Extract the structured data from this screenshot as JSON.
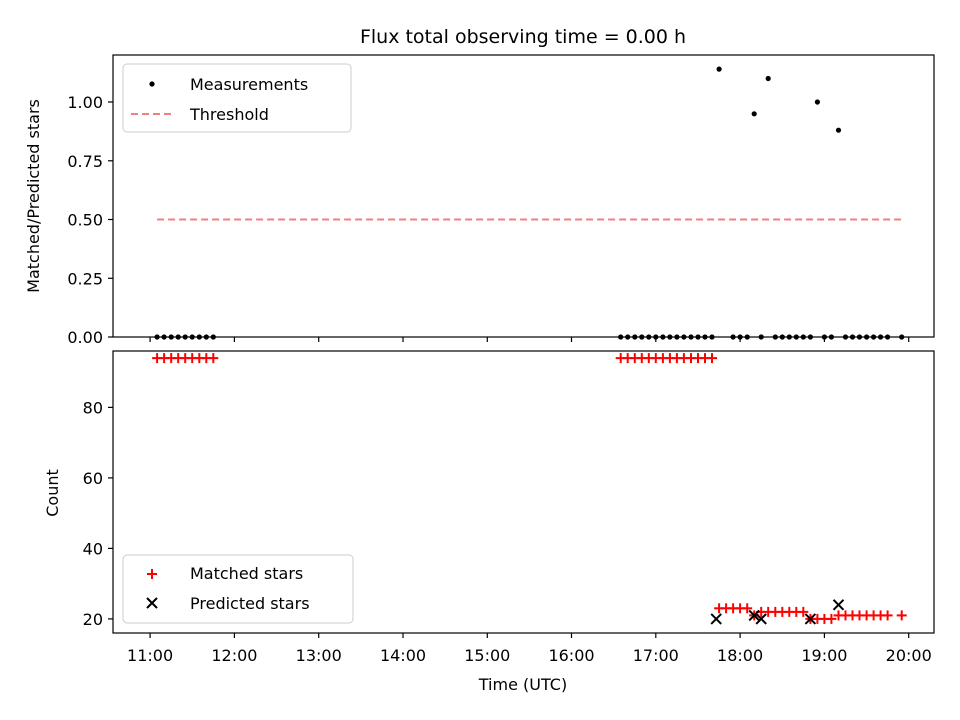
{
  "chart_data": [
    {
      "type": "scatter",
      "title": "Flux total observing time = 0.00 h",
      "xlabel": "",
      "ylabel": "Matched/Predicted stars",
      "ylim": [
        0,
        1.2
      ],
      "yticks": [
        "0.00",
        "0.25",
        "0.50",
        "0.75",
        "1.00"
      ],
      "yticks_values": [
        0,
        0.25,
        0.5,
        0.75,
        1.0
      ],
      "xlim": [
        10.56,
        20.3
      ],
      "x_time_range": [
        "10:34",
        "20:18"
      ],
      "legend": {
        "placement": "upper-left",
        "entries": [
          "Measurements",
          "Threshold"
        ]
      },
      "threshold": {
        "name": "Threshold",
        "value": 0.5,
        "x_range": [
          "11:05",
          "19:55"
        ],
        "color": "#f08080"
      },
      "series": [
        {
          "name": "Measurements",
          "color": "#000000",
          "x": [
            "11:05",
            "11:10",
            "11:15",
            "11:20",
            "11:25",
            "11:30",
            "11:35",
            "11:40",
            "11:45",
            "16:35",
            "16:40",
            "16:45",
            "16:50",
            "16:55",
            "17:00",
            "17:05",
            "17:10",
            "17:15",
            "17:20",
            "17:25",
            "17:30",
            "17:35",
            "17:40",
            "17:45",
            "17:55",
            "18:00",
            "18:05",
            "18:10",
            "18:15",
            "18:20",
            "18:25",
            "18:30",
            "18:35",
            "18:40",
            "18:45",
            "18:50",
            "18:55",
            "19:00",
            "19:05",
            "19:10",
            "19:15",
            "19:20",
            "19:25",
            "19:30",
            "19:35",
            "19:40",
            "19:45",
            "19:55"
          ],
          "y": [
            0,
            0,
            0,
            0,
            0,
            0,
            0,
            0,
            0,
            0,
            0,
            0,
            0,
            0,
            0,
            0,
            0,
            0,
            0,
            0,
            0,
            0,
            0,
            1.14,
            0,
            0,
            0,
            0.95,
            0,
            1.1,
            0,
            0,
            0,
            0,
            0,
            0,
            1.0,
            0,
            0,
            0.88,
            0,
            0,
            0,
            0,
            0,
            0,
            0,
            0
          ]
        }
      ]
    },
    {
      "type": "scatter",
      "title": "",
      "xlabel": "Time (UTC)",
      "ylabel": "Count",
      "ylim": [
        16,
        96
      ],
      "yticks": [
        "20",
        "40",
        "60",
        "80"
      ],
      "yticks_values": [
        20,
        40,
        60,
        80
      ],
      "xlim": [
        10.56,
        20.3
      ],
      "x_time_range": [
        "10:34",
        "20:18"
      ],
      "xticks": [
        "11:00",
        "12:00",
        "13:00",
        "14:00",
        "15:00",
        "16:00",
        "17:00",
        "18:00",
        "19:00",
        "20:00"
      ],
      "xticks_values": [
        11,
        12,
        13,
        14,
        15,
        16,
        17,
        18,
        19,
        20
      ],
      "legend": {
        "placement": "lower-left",
        "entries": [
          "Matched stars",
          "Predicted stars"
        ]
      },
      "series": [
        {
          "name": "Matched stars",
          "color": "#ff0000",
          "marker": "plus",
          "x": [
            "11:05",
            "11:10",
            "11:15",
            "11:20",
            "11:25",
            "11:30",
            "11:35",
            "11:40",
            "11:45",
            "16:35",
            "16:40",
            "16:45",
            "16:50",
            "16:55",
            "17:00",
            "17:05",
            "17:10",
            "17:15",
            "17:20",
            "17:25",
            "17:30",
            "17:35",
            "17:40",
            "17:45",
            "17:50",
            "17:55",
            "18:00",
            "18:05",
            "18:10",
            "18:15",
            "18:20",
            "18:25",
            "18:30",
            "18:35",
            "18:40",
            "18:45",
            "18:50",
            "18:55",
            "19:00",
            "19:05",
            "19:10",
            "19:15",
            "19:20",
            "19:25",
            "19:30",
            "19:35",
            "19:40",
            "19:45",
            "19:55"
          ],
          "y": [
            94,
            94,
            94,
            94,
            94,
            94,
            94,
            94,
            94,
            94,
            94,
            94,
            94,
            94,
            94,
            94,
            94,
            94,
            94,
            94,
            94,
            94,
            94,
            23,
            23,
            23,
            23,
            23,
            21,
            22,
            22,
            22,
            22,
            22,
            22,
            22,
            20,
            20,
            20,
            20,
            21,
            21,
            21,
            21,
            21,
            21,
            21,
            21,
            21
          ]
        },
        {
          "name": "Predicted stars",
          "color": "#000000",
          "marker": "x",
          "x": [
            "17:43",
            "18:10",
            "18:15",
            "18:50",
            "19:10"
          ],
          "y": [
            20,
            21,
            20,
            20,
            24
          ]
        }
      ]
    }
  ]
}
